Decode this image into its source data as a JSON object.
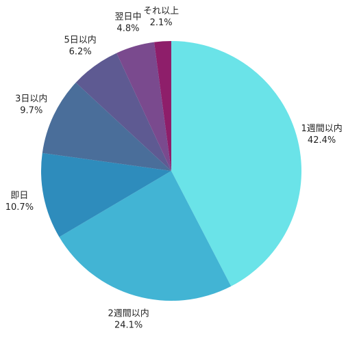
{
  "chart_data": {
    "type": "pie",
    "categories": [
      "1週間以内",
      "2週間以内",
      "即日",
      "3日以内",
      "5日以内",
      "翌日中",
      "それ以上"
    ],
    "values": [
      42.4,
      24.1,
      10.7,
      9.7,
      6.2,
      4.8,
      2.1
    ],
    "value_labels": [
      "42.4%",
      "24.1%",
      "10.7%",
      "9.7%",
      "6.2%",
      "4.8%",
      "2.1%"
    ],
    "colors": [
      "#6ae3e8",
      "#42b4d4",
      "#2e8cbc",
      "#4a6e9a",
      "#5e5a92",
      "#7a4a8e",
      "#8e1e6a"
    ]
  }
}
